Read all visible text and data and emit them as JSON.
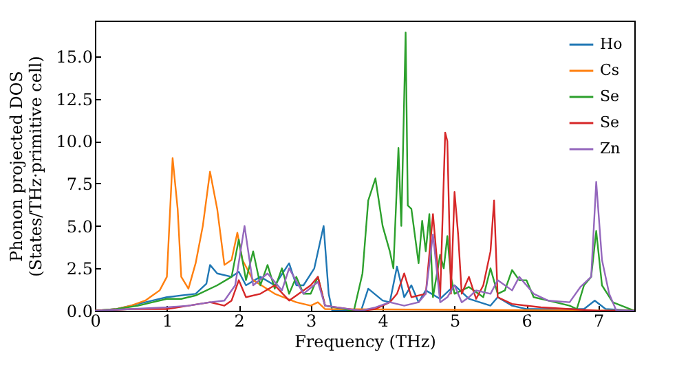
{
  "chart_data": {
    "type": "line",
    "xlabel": "Frequency (THz)",
    "ylabel": "Phonon projected DOS\n(States/THz·primitive cell)",
    "xlim": [
      0,
      7.5
    ],
    "ylim": [
      0,
      17.1
    ],
    "xticks": [
      0,
      1,
      2,
      3,
      4,
      5,
      6,
      7
    ],
    "yticks": [
      {
        "value": 0,
        "label": "0.0"
      },
      {
        "value": 2.5,
        "label": "2.5"
      },
      {
        "value": 5,
        "label": "5.0"
      },
      {
        "value": 7.5,
        "label": "7.5"
      },
      {
        "value": 10,
        "label": "10.0"
      },
      {
        "value": 12.5,
        "label": "12.5"
      },
      {
        "value": 15,
        "label": "15.0"
      }
    ],
    "grid": false,
    "legend": "top right",
    "line_style": "solid",
    "marker": "none",
    "series": [
      {
        "name": "Ho",
        "color": "#1f77b4",
        "x": [
          0,
          0.3,
          0.6,
          0.8,
          1.0,
          1.2,
          1.4,
          1.55,
          1.6,
          1.7,
          1.9,
          2.0,
          2.1,
          2.3,
          2.5,
          2.7,
          2.8,
          2.9,
          3.05,
          3.18,
          3.25,
          3.3,
          3.7,
          3.8,
          4.0,
          4.1,
          4.2,
          4.3,
          4.4,
          4.5,
          4.6,
          4.8,
          5.0,
          5.2,
          5.5,
          5.6,
          5.8,
          6.0,
          6.8,
          6.95,
          7.1,
          7.5
        ],
        "values": [
          0,
          0.1,
          0.4,
          0.6,
          0.8,
          0.9,
          1.0,
          1.6,
          2.7,
          2.2,
          2.0,
          2.3,
          1.5,
          2.0,
          1.5,
          2.8,
          1.5,
          1.5,
          2.5,
          5.0,
          1.0,
          0,
          0,
          1.3,
          0.6,
          0.5,
          2.6,
          0.8,
          1.5,
          0.5,
          1.2,
          0.7,
          1.5,
          0.7,
          0.3,
          0.8,
          0.3,
          0.1,
          0.1,
          0.6,
          0.1,
          0
        ]
      },
      {
        "name": "Cs",
        "color": "#ff7f0e",
        "x": [
          0,
          0.3,
          0.5,
          0.7,
          0.8,
          0.9,
          1.0,
          1.08,
          1.15,
          1.2,
          1.3,
          1.4,
          1.5,
          1.6,
          1.7,
          1.8,
          1.9,
          1.98,
          2.05,
          2.2,
          2.5,
          2.8,
          3.0,
          3.1,
          3.2,
          7.5
        ],
        "values": [
          0,
          0.1,
          0.3,
          0.6,
          0.9,
          1.2,
          2.0,
          9.0,
          6.0,
          2.0,
          1.3,
          2.8,
          5.0,
          8.2,
          6.0,
          2.7,
          3.0,
          4.6,
          3.0,
          1.8,
          1.0,
          0.5,
          0.3,
          0.5,
          0.1,
          0
        ]
      },
      {
        "name": "Se",
        "color": "#2ca02c",
        "x": [
          0,
          0.3,
          0.6,
          0.8,
          1.0,
          1.2,
          1.4,
          1.7,
          1.9,
          2.0,
          2.1,
          2.2,
          2.3,
          2.4,
          2.5,
          2.6,
          2.7,
          2.8,
          2.9,
          3.0,
          3.1,
          3.2,
          3.6,
          3.72,
          3.8,
          3.9,
          4.0,
          4.1,
          4.15,
          4.22,
          4.26,
          4.32,
          4.35,
          4.4,
          4.5,
          4.55,
          4.6,
          4.65,
          4.7,
          4.8,
          4.85,
          4.9,
          4.95,
          5.0,
          5.2,
          5.4,
          5.5,
          5.6,
          5.7,
          5.8,
          5.9,
          6.0,
          6.1,
          6.3,
          6.6,
          6.7,
          6.8,
          6.9,
          6.97,
          7.05,
          7.2,
          7.5
        ],
        "values": [
          0,
          0.1,
          0.3,
          0.5,
          0.7,
          0.7,
          0.9,
          1.5,
          2.0,
          4.2,
          1.8,
          3.5,
          1.5,
          2.7,
          1.3,
          2.5,
          1.0,
          2.0,
          1.0,
          1.0,
          2.0,
          0.3,
          0,
          2.2,
          6.5,
          7.8,
          5.0,
          3.5,
          2.5,
          9.6,
          5.0,
          16.4,
          6.2,
          6.0,
          2.8,
          5.3,
          3.5,
          5.7,
          0.8,
          3.3,
          2.5,
          4.4,
          2.0,
          1.0,
          1.4,
          0.8,
          2.5,
          1.0,
          1.2,
          2.4,
          1.8,
          1.8,
          0.8,
          0.6,
          0.3,
          0.1,
          1.5,
          2.0,
          4.7,
          1.5,
          0.5,
          0
        ]
      },
      {
        "name": "Se",
        "color": "#d62728",
        "x": [
          0,
          0.5,
          1.0,
          1.3,
          1.6,
          1.8,
          1.9,
          2.0,
          2.1,
          2.3,
          2.5,
          2.7,
          3.0,
          3.1,
          3.2,
          3.7,
          3.9,
          4.1,
          4.2,
          4.3,
          4.4,
          4.6,
          4.7,
          4.8,
          4.87,
          4.9,
          4.95,
          5.0,
          5.05,
          5.1,
          5.2,
          5.3,
          5.4,
          5.5,
          5.55,
          5.6,
          5.8,
          6.2,
          6.6,
          7.0,
          7.5
        ],
        "values": [
          0,
          0.1,
          0.1,
          0.3,
          0.5,
          0.3,
          0.6,
          1.8,
          0.8,
          1.0,
          1.5,
          0.6,
          1.5,
          2.0,
          0.3,
          0,
          0.1,
          0.5,
          1.0,
          2.2,
          0.8,
          1.0,
          5.7,
          0.8,
          10.5,
          10.0,
          1.0,
          7.0,
          4.5,
          1.0,
          2.0,
          0.7,
          1.5,
          3.5,
          6.5,
          0.8,
          0.4,
          0.2,
          0.1,
          0,
          0
        ]
      },
      {
        "name": "Zn",
        "color": "#9467bd",
        "x": [
          0,
          0.5,
          1.0,
          1.3,
          1.6,
          1.8,
          1.95,
          2.08,
          2.2,
          2.4,
          2.6,
          2.7,
          2.9,
          3.1,
          3.2,
          3.7,
          3.9,
          4.1,
          4.3,
          4.5,
          4.6,
          4.7,
          4.8,
          4.9,
          5.0,
          5.1,
          5.2,
          5.3,
          5.5,
          5.6,
          5.8,
          5.9,
          6.1,
          6.3,
          6.6,
          6.75,
          6.9,
          6.97,
          7.05,
          7.15,
          7.25,
          7.5
        ],
        "values": [
          0,
          0.1,
          0.2,
          0.3,
          0.5,
          0.6,
          1.5,
          5.0,
          1.5,
          2.2,
          1.2,
          2.5,
          1.0,
          1.7,
          0.3,
          0,
          0.2,
          0.5,
          0.3,
          0.5,
          1.0,
          4.5,
          0.5,
          0.8,
          1.5,
          0.5,
          0.8,
          1.2,
          1.0,
          1.8,
          1.2,
          2.0,
          1.0,
          0.6,
          0.5,
          1.4,
          2.0,
          7.6,
          3.0,
          1.0,
          0,
          0
        ]
      }
    ]
  }
}
